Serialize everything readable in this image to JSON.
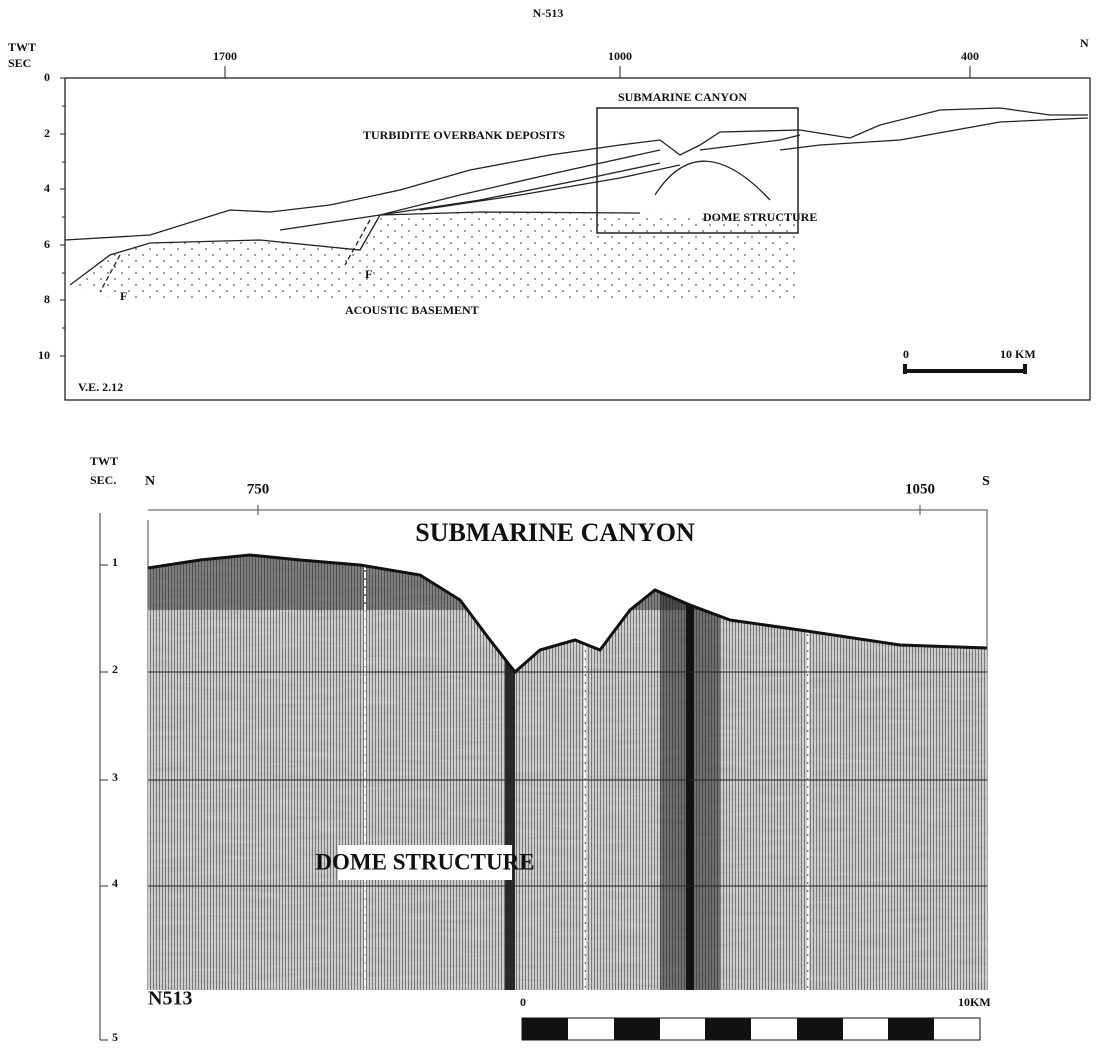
{
  "top_section": {
    "title": "N-513",
    "y_axis_label": [
      "TWT",
      "SEC"
    ],
    "direction": "N",
    "y_ticks": [
      "0",
      "2",
      "4",
      "6",
      "8",
      "10"
    ],
    "x_ticks": [
      "1700",
      "1000",
      "400"
    ],
    "labels": {
      "canyon": "SUBMARINE CANYON",
      "turbidite": "TURBIDITE OVERBANK DEPOSITS",
      "dome": "DOME STRUCTURE",
      "basement": "ACOUSTIC BASEMENT"
    },
    "faults": [
      "F",
      "F"
    ],
    "scale_bar": {
      "start": "0",
      "end": "10 KM"
    },
    "vertical_exaggeration": "V.E. 2.12"
  },
  "bottom_section": {
    "y_axis_label": [
      "TWT",
      "SEC."
    ],
    "directions": [
      "N",
      "S"
    ],
    "x_ticks": [
      "750",
      "1050"
    ],
    "y_ticks": [
      "1",
      "2",
      "3",
      "4",
      "5"
    ],
    "labels": {
      "canyon": "SUBMARINE CANYON",
      "dome": "DOME STRUCTURE"
    },
    "line_name": "N513",
    "scale_bar": {
      "start": "0",
      "end": "10KM"
    }
  }
}
